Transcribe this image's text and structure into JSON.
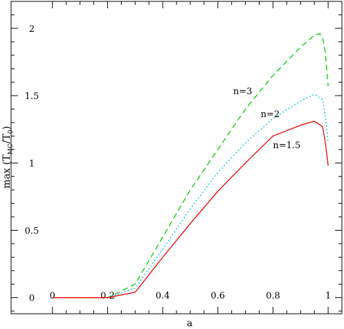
{
  "chart_data": {
    "type": "line",
    "title": "",
    "xlabel": "a",
    "ylabel": "max (T",
    "ylabel_sub": "MC",
    "ylabel_tail": "/T",
    "ylabel_sub2": "0",
    "ylabel_close": ")",
    "xlim": [
      -0.15,
      1.05
    ],
    "ylim": [
      -0.12,
      2.2
    ],
    "xticks": [
      0,
      0.2,
      0.4,
      0.6,
      0.8,
      1
    ],
    "xtick_labels": [
      "0",
      "0.2",
      "0.4",
      "0.6",
      "0.8",
      "1"
    ],
    "yticks": [
      0,
      0.5,
      1,
      1.5,
      2
    ],
    "ytick_labels": [
      "0",
      "0.5",
      "1",
      "1.5",
      "2"
    ],
    "grid": false,
    "series": [
      {
        "name": "n=3",
        "color": "#00cc00",
        "dash": "dashed",
        "label_pos": [
          0.69,
          1.51
        ],
        "x": [
          0,
          0.2,
          0.25,
          0.3,
          0.4,
          0.5,
          0.6,
          0.7,
          0.8,
          0.9,
          0.95,
          0.97,
          0.98,
          0.99,
          1.0
        ],
        "y": [
          0,
          0,
          0.05,
          0.1,
          0.45,
          0.8,
          1.1,
          1.4,
          1.65,
          1.86,
          1.95,
          1.96,
          1.93,
          1.82,
          1.57
        ]
      },
      {
        "name": "n=2",
        "color": "#00bbdd",
        "dash": "dotted",
        "label_pos": [
          0.79,
          1.34
        ],
        "x": [
          0,
          0.2,
          0.3,
          0.4,
          0.5,
          0.6,
          0.7,
          0.8,
          0.9,
          0.95,
          0.98,
          0.99,
          1.0
        ],
        "y": [
          0,
          0,
          0.07,
          0.36,
          0.66,
          0.93,
          1.15,
          1.33,
          1.46,
          1.51,
          1.47,
          1.35,
          1.15
        ]
      },
      {
        "name": "n=1.5",
        "color": "#ee0000",
        "dash": "solid",
        "label_pos": [
          0.85,
          1.11
        ],
        "x": [
          0,
          0.2,
          0.3,
          0.4,
          0.5,
          0.6,
          0.7,
          0.8,
          0.9,
          0.95,
          0.98,
          0.99,
          1.0
        ],
        "y": [
          0,
          0,
          0.04,
          0.3,
          0.55,
          0.79,
          1.0,
          1.2,
          1.28,
          1.31,
          1.27,
          1.15,
          0.98
        ]
      }
    ]
  }
}
